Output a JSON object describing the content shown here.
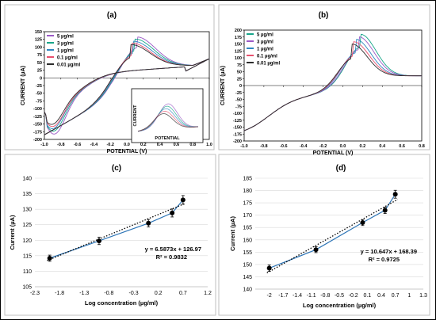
{
  "chart_data": [
    {
      "panel": "(a)",
      "type": "line",
      "xlabel": "POTENTIAL (V)",
      "ylabel": "CURRENT (µA)",
      "xlim": [
        -1.0,
        1.0
      ],
      "ylim": [
        -200,
        150
      ],
      "x_ticks": [
        "-1.0",
        "-0.8",
        "-0.6",
        "-0.4",
        "-0.2",
        "0.0",
        "0.2",
        "0.4",
        "0.6",
        "0.8",
        "1.0"
      ],
      "y_ticks": [
        "150",
        "125",
        "100",
        "75",
        "50",
        "25",
        "0",
        "-25",
        "-50",
        "-75",
        "-100",
        "-125",
        "-150",
        "-175",
        "-200"
      ],
      "legend": "top-left",
      "series": [
        {
          "name": "5 µg/ml",
          "color": "#9b59c6",
          "peak_x": 0.12,
          "peak_y": 133,
          "min_x": -0.88,
          "min_y": -190
        },
        {
          "name": "3 µg/ml",
          "color": "#17a589",
          "peak_x": 0.1,
          "peak_y": 126,
          "min_x": -0.89,
          "min_y": -180
        },
        {
          "name": "1 µg/ml",
          "color": "#2e86c1",
          "peak_x": 0.08,
          "peak_y": 119,
          "min_x": -0.9,
          "min_y": -172
        },
        {
          "name": "0.1 µg/ml",
          "color": "#e8506e",
          "peak_x": 0.06,
          "peak_y": 113,
          "min_x": -0.9,
          "min_y": -165
        },
        {
          "name": "0.01 µg/ml",
          "color": "#2c2c2c",
          "peak_x": 0.05,
          "peak_y": 108,
          "min_x": -0.91,
          "min_y": -158
        }
      ],
      "inset": {
        "xlabel": "POTENTIAL",
        "ylabel": "CURRENT"
      }
    },
    {
      "panel": "(b)",
      "type": "line",
      "xlabel": "POTENTIAL (V)",
      "ylabel": "CURRENT (µA)",
      "xlim": [
        -1.0,
        0.8
      ],
      "ylim": [
        -200,
        200
      ],
      "x_ticks": [
        "-1.0",
        "-0.8",
        "-0.6",
        "-0.4",
        "-0.2",
        "0.0",
        "0.2",
        "0.4",
        "0.6",
        "0.8"
      ],
      "y_ticks": [
        "200",
        "175",
        "150",
        "125",
        "100",
        "75",
        "50",
        "25",
        "0",
        "-25",
        "-50",
        "-75",
        "-100",
        "-125",
        "-150",
        "-175",
        "-200"
      ],
      "legend": "top-left",
      "series": [
        {
          "name": "5 µg/ml",
          "color": "#17a589",
          "peak_x": 0.18,
          "peak_y": 185
        },
        {
          "name": "3 µg/ml",
          "color": "#9b59c6",
          "peak_x": 0.16,
          "peak_y": 176
        },
        {
          "name": "1 µg/ml",
          "color": "#2e86c1",
          "peak_x": 0.13,
          "peak_y": 167
        },
        {
          "name": "0.1 µg/ml",
          "color": "#e8506e",
          "peak_x": 0.11,
          "peak_y": 158
        },
        {
          "name": "0.01 µg/ml",
          "color": "#2c2c2c",
          "peak_x": 0.09,
          "peak_y": 150
        }
      ]
    },
    {
      "panel": "(c)",
      "type": "scatter",
      "xlabel": "Log concentration (µg/ml)",
      "ylabel": "Current (µA)",
      "xlim": [
        -2.3,
        1.2
      ],
      "ylim": [
        105,
        140
      ],
      "x_ticks": [
        "-2.3",
        "-1.8",
        "-1.3",
        "-0.8",
        "-0.3",
        "0.2",
        "0.7",
        "1.2"
      ],
      "y_ticks": [
        "140",
        "135",
        "130",
        "125",
        "120",
        "115",
        "110",
        "105"
      ],
      "x": [
        -2.0,
        -1.0,
        0.0,
        0.48,
        0.7
      ],
      "y": [
        114.2,
        119.8,
        125.5,
        128.8,
        133.0
      ],
      "errors": [
        1.0,
        1.2,
        1.2,
        1.3,
        1.4
      ],
      "equation": "y = 6.5873x + 126.97",
      "r2": "R² = 0.9832",
      "fit": {
        "slope": 6.5873,
        "intercept": 126.97
      }
    },
    {
      "panel": "(d)",
      "type": "scatter",
      "xlabel": "Log concentration (µg/ml)",
      "ylabel": "Current (µA)",
      "xlim": [
        -2.3,
        1.3
      ],
      "ylim": [
        140,
        185
      ],
      "x_ticks": [
        "-2",
        "-1.7",
        "-1.4",
        "-1.1",
        "-0.8",
        "-0.5",
        "-0.2",
        "0.1",
        "0.4",
        "0.7",
        "1",
        "1.3"
      ],
      "y_ticks": [
        "185",
        "180",
        "175",
        "170",
        "165",
        "160",
        "155",
        "150",
        "145",
        "140"
      ],
      "x": [
        -2.0,
        -1.0,
        0.0,
        0.48,
        0.7
      ],
      "y": [
        148.5,
        156.0,
        167.0,
        172.0,
        178.5
      ],
      "errors": [
        1.3,
        1.2,
        1.2,
        1.3,
        1.6
      ],
      "equation": "y = 10.647x + 168.39",
      "r2": "R² = 0.9725",
      "fit": {
        "slope": 10.647,
        "intercept": 168.39
      }
    }
  ]
}
